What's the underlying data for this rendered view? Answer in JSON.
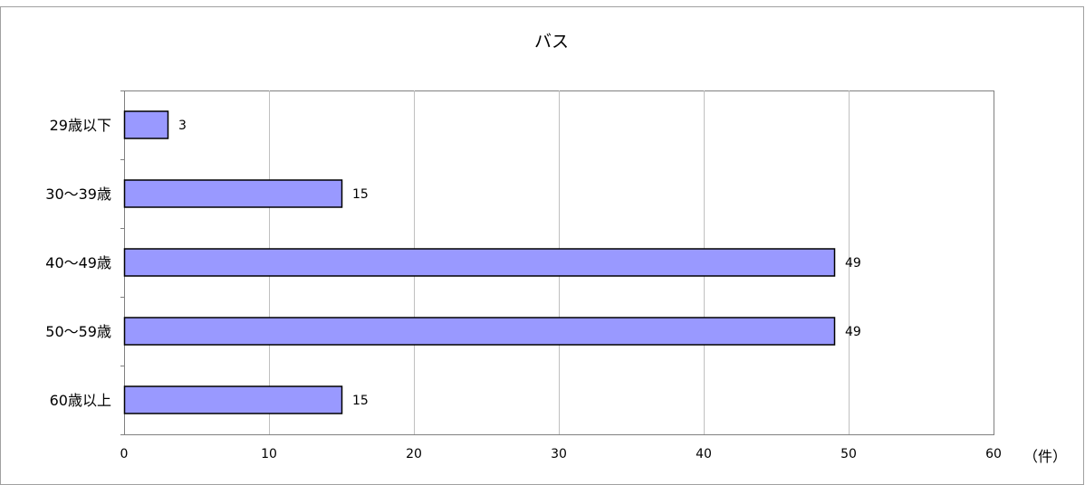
{
  "colors": {
    "bar_fill": "#9999ff",
    "bar_stroke": "#000000",
    "gridline": "#c0c0c0",
    "axis": "#808080",
    "background": "#ffffff"
  },
  "chart_data": {
    "type": "bar",
    "orientation": "horizontal",
    "title": "バス",
    "categories": [
      "29歳以下",
      "30～39歳",
      "40～49歳",
      "50～59歳",
      "60歳以上"
    ],
    "values": [
      3,
      15,
      49,
      49,
      15
    ],
    "data_labels": [
      "3",
      "15",
      "49",
      "49",
      "15"
    ],
    "xlabel": "（件）",
    "ylabel": "",
    "xlim": [
      0,
      60
    ],
    "x_ticks": [
      0,
      10,
      20,
      30,
      40,
      50,
      60
    ],
    "x_tick_labels": [
      "0",
      "10",
      "20",
      "30",
      "40",
      "50",
      "60"
    ],
    "grid": "vertical",
    "legend": "none"
  }
}
